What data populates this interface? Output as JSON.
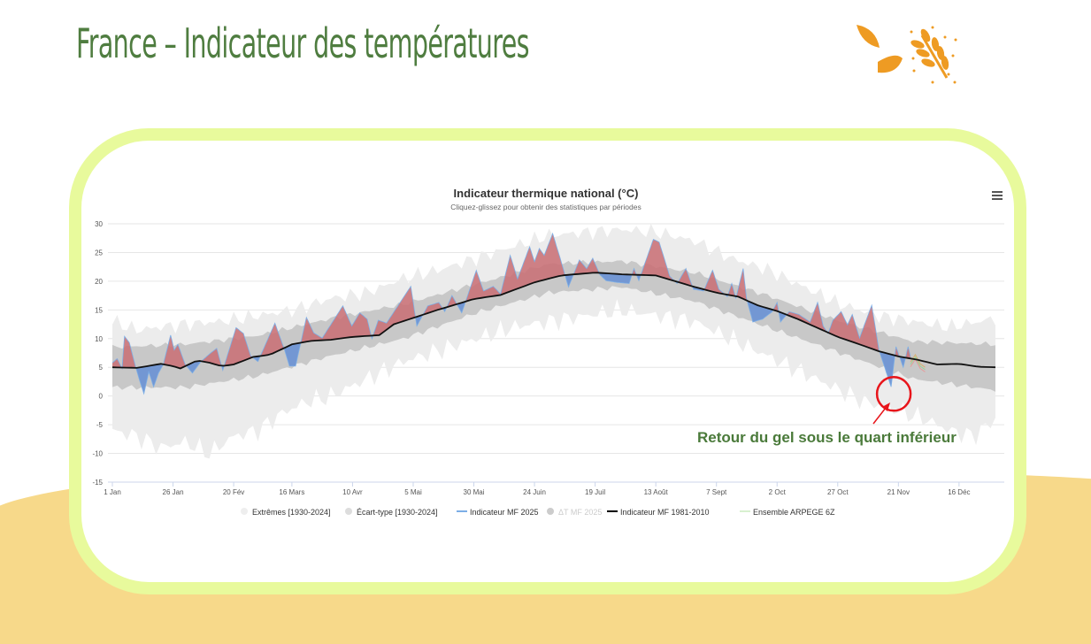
{
  "page_title": "France – Indicateur des températures",
  "logo_icon": "wheat-leaves-icon",
  "annotation": "Retour du gel sous le quart inférieur",
  "colors": {
    "title": "#4f7d40",
    "above": "#c96d73",
    "below": "#6f95d4",
    "card_border": "#e8fa9c",
    "accent_bg": "#f7d98a",
    "highlight": "#e8151b"
  },
  "chart_data": {
    "type": "area",
    "title": "Indicateur thermique national (°C)",
    "subtitle": "Cliquez-glissez pour obtenir des statistiques par périodes",
    "menu_icon": "hamburger-menu-icon",
    "ylim": [
      -15,
      30
    ],
    "yticks": [
      30,
      25,
      20,
      15,
      10,
      5,
      0,
      -5,
      -10,
      -15
    ],
    "xlim_days": [
      0,
      364
    ],
    "xticks": [
      {
        "day": 0,
        "label": "1 Jan"
      },
      {
        "day": 25,
        "label": "26 Jan"
      },
      {
        "day": 50,
        "label": "20 Fév"
      },
      {
        "day": 74,
        "label": "16 Mars"
      },
      {
        "day": 99,
        "label": "10 Avr"
      },
      {
        "day": 124,
        "label": "5 Mai"
      },
      {
        "day": 149,
        "label": "30 Mai"
      },
      {
        "day": 174,
        "label": "24 Juin"
      },
      {
        "day": 199,
        "label": "19 Juil"
      },
      {
        "day": 224,
        "label": "13 Août"
      },
      {
        "day": 249,
        "label": "7 Sept"
      },
      {
        "day": 274,
        "label": "2 Oct"
      },
      {
        "day": 299,
        "label": "27 Oct"
      },
      {
        "day": 324,
        "label": "21 Nov"
      },
      {
        "day": 349,
        "label": "16 Déc"
      }
    ],
    "grid": true,
    "legend_position": "bottom",
    "legend": [
      {
        "label": "Extrêmes [1930-2024]",
        "color": "#eeeeee",
        "type": "dot"
      },
      {
        "label": "Écart-type [1930-2024]",
        "color": "#dddddd",
        "type": "dot"
      },
      {
        "label": "Indicateur MF 2025",
        "color": "#7caee6",
        "type": "line"
      },
      {
        "label": "ΔT MF 2025",
        "color": "#cccccc",
        "type": "dot",
        "muted": true
      },
      {
        "label": "Indicateur MF 1981-2010",
        "color": "#000000",
        "type": "line"
      },
      {
        "label": "Ensemble ARPEGE 6Z",
        "color": "#d8f0d0",
        "type": "line"
      }
    ],
    "series": {
      "extremes_max": [
        [
          0,
          13
        ],
        [
          10,
          11.5
        ],
        [
          30,
          12.5
        ],
        [
          45,
          13
        ],
        [
          60,
          14
        ],
        [
          75,
          15
        ],
        [
          90,
          17
        ],
        [
          105,
          18
        ],
        [
          120,
          20.5
        ],
        [
          135,
          22
        ],
        [
          150,
          24
        ],
        [
          165,
          26
        ],
        [
          180,
          28
        ],
        [
          195,
          28.5
        ],
        [
          210,
          29
        ],
        [
          225,
          28.5
        ],
        [
          240,
          27
        ],
        [
          255,
          24
        ],
        [
          270,
          22
        ],
        [
          285,
          19
        ],
        [
          300,
          16
        ],
        [
          315,
          14
        ],
        [
          330,
          13
        ],
        [
          345,
          12
        ],
        [
          364,
          13.5
        ]
      ],
      "extremes_min": [
        [
          0,
          -6
        ],
        [
          10,
          -7
        ],
        [
          20,
          -9
        ],
        [
          30,
          -8
        ],
        [
          40,
          -10
        ],
        [
          50,
          -7
        ],
        [
          60,
          -6
        ],
        [
          70,
          -3
        ],
        [
          80,
          -1
        ],
        [
          90,
          0
        ],
        [
          100,
          2
        ],
        [
          110,
          4
        ],
        [
          120,
          6
        ],
        [
          135,
          8
        ],
        [
          150,
          10
        ],
        [
          165,
          12
        ],
        [
          180,
          13
        ],
        [
          195,
          14
        ],
        [
          210,
          15
        ],
        [
          225,
          14
        ],
        [
          240,
          13
        ],
        [
          255,
          10
        ],
        [
          270,
          7
        ],
        [
          285,
          4
        ],
        [
          300,
          1
        ],
        [
          310,
          -1
        ],
        [
          320,
          -2
        ],
        [
          335,
          -4
        ],
        [
          345,
          -6
        ],
        [
          355,
          -7
        ],
        [
          364,
          -4
        ]
      ],
      "stddev_low": [
        [
          0,
          1.5
        ],
        [
          30,
          1.5
        ],
        [
          60,
          3.5
        ],
        [
          90,
          7
        ],
        [
          120,
          10
        ],
        [
          150,
          14.5
        ],
        [
          180,
          18
        ],
        [
          210,
          19
        ],
        [
          240,
          16.5
        ],
        [
          270,
          12
        ],
        [
          300,
          7.5
        ],
        [
          330,
          3
        ],
        [
          364,
          1
        ]
      ],
      "stddev_high": [
        [
          0,
          8.5
        ],
        [
          30,
          9
        ],
        [
          60,
          10.5
        ],
        [
          90,
          13.5
        ],
        [
          120,
          16
        ],
        [
          150,
          19.5
        ],
        [
          180,
          23
        ],
        [
          210,
          23.5
        ],
        [
          240,
          21.5
        ],
        [
          270,
          17.5
        ],
        [
          300,
          13
        ],
        [
          330,
          9.5
        ],
        [
          364,
          9
        ]
      ],
      "normal_1981_2010": [
        [
          0,
          5
        ],
        [
          10,
          4.9
        ],
        [
          20,
          5.6
        ],
        [
          25,
          5.2
        ],
        [
          28,
          4.8
        ],
        [
          35,
          6.2
        ],
        [
          40,
          5.8
        ],
        [
          45,
          5.2
        ],
        [
          50,
          5.5
        ],
        [
          58,
          6.8
        ],
        [
          65,
          7.2
        ],
        [
          74,
          9
        ],
        [
          82,
          9.6
        ],
        [
          90,
          9.8
        ],
        [
          99,
          10.3
        ],
        [
          110,
          10.6
        ],
        [
          116,
          12.5
        ],
        [
          124,
          13.6
        ],
        [
          134,
          15
        ],
        [
          142,
          16
        ],
        [
          149,
          16.9
        ],
        [
          160,
          17.6
        ],
        [
          174,
          19.8
        ],
        [
          185,
          21
        ],
        [
          199,
          21.5
        ],
        [
          210,
          21.2
        ],
        [
          224,
          21
        ],
        [
          232,
          20
        ],
        [
          240,
          19
        ],
        [
          249,
          18
        ],
        [
          258,
          17.3
        ],
        [
          266,
          15.8
        ],
        [
          274,
          14.8
        ],
        [
          282,
          13.5
        ],
        [
          290,
          12
        ],
        [
          299,
          10.3
        ],
        [
          308,
          9
        ],
        [
          316,
          7.8
        ],
        [
          324,
          6.9
        ],
        [
          332,
          6.3
        ],
        [
          340,
          5.5
        ],
        [
          349,
          5.6
        ],
        [
          357,
          5.1
        ],
        [
          364,
          5
        ]
      ],
      "indicator_2025": [
        [
          0,
          5.8
        ],
        [
          2,
          6.5
        ],
        [
          4,
          4.8
        ],
        [
          5,
          10.4
        ],
        [
          7,
          9.3
        ],
        [
          9,
          6
        ],
        [
          11,
          3
        ],
        [
          13,
          0.4
        ],
        [
          15,
          4.2
        ],
        [
          17,
          1.6
        ],
        [
          19,
          4
        ],
        [
          21,
          5.5
        ],
        [
          24,
          10.6
        ],
        [
          25.5,
          8
        ],
        [
          27,
          9
        ],
        [
          30,
          5.5
        ],
        [
          33,
          4
        ],
        [
          36.5,
          6
        ],
        [
          40,
          7.3
        ],
        [
          43,
          8.3
        ],
        [
          45.5,
          4.5
        ],
        [
          51,
          11.9
        ],
        [
          54,
          10.9
        ],
        [
          57,
          7
        ],
        [
          60,
          6
        ],
        [
          67,
          12.7
        ],
        [
          71,
          8
        ],
        [
          73,
          5.2
        ],
        [
          75.5,
          5.2
        ],
        [
          80,
          13.7
        ],
        [
          83,
          11
        ],
        [
          86.5,
          10.1
        ],
        [
          95,
          15.7
        ],
        [
          98.7,
          12.2
        ],
        [
          102,
          14.5
        ],
        [
          105,
          13.4
        ],
        [
          107,
          10
        ],
        [
          109.6,
          13.2
        ],
        [
          113,
          12.7
        ],
        [
          123,
          19.1
        ],
        [
          125.5,
          12.2
        ],
        [
          130,
          15.7
        ],
        [
          134.6,
          16.3
        ],
        [
          137,
          14.7
        ],
        [
          140,
          17.5
        ],
        [
          144,
          14.5
        ],
        [
          150,
          21.9
        ],
        [
          153,
          18.3
        ],
        [
          157,
          19.1
        ],
        [
          160,
          17.8
        ],
        [
          164,
          24.5
        ],
        [
          167,
          20.4
        ],
        [
          172,
          26
        ],
        [
          174,
          23.4
        ],
        [
          176,
          25.7
        ],
        [
          178,
          24.5
        ],
        [
          181.5,
          28.3
        ],
        [
          185,
          23.4
        ],
        [
          188,
          19
        ],
        [
          192.5,
          23.7
        ],
        [
          195.5,
          22.2
        ],
        [
          198,
          24
        ],
        [
          201,
          21.1
        ],
        [
          203.5,
          20.1
        ],
        [
          208,
          19.8
        ],
        [
          213,
          19.6
        ],
        [
          215,
          22.2
        ],
        [
          217,
          20.1
        ],
        [
          223,
          27.3
        ],
        [
          225.4,
          26.8
        ],
        [
          229.7,
          20.9
        ],
        [
          232.8,
          19.6
        ],
        [
          236.4,
          22.2
        ],
        [
          239.5,
          18.6
        ],
        [
          243.7,
          18.3
        ],
        [
          247.4,
          21.9
        ],
        [
          250,
          18.6
        ],
        [
          253.5,
          17.3
        ],
        [
          255.3,
          19.6
        ],
        [
          257,
          17
        ],
        [
          260,
          22.2
        ],
        [
          261.4,
          17
        ],
        [
          264,
          12.9
        ],
        [
          268,
          13.4
        ],
        [
          272,
          14.7
        ],
        [
          274,
          16.3
        ],
        [
          275.4,
          12.9
        ],
        [
          279,
          14.7
        ],
        [
          283,
          14.2
        ],
        [
          287.6,
          12.9
        ],
        [
          290.7,
          16.3
        ],
        [
          293,
          12.2
        ],
        [
          295,
          10.9
        ],
        [
          297,
          13.2
        ],
        [
          300.4,
          14.7
        ],
        [
          303,
          12.4
        ],
        [
          305,
          14.2
        ],
        [
          308,
          10.1
        ],
        [
          313,
          15.8
        ],
        [
          316,
          8
        ],
        [
          321,
          1.6
        ],
        [
          323,
          8.6
        ],
        [
          326,
          5
        ],
        [
          328,
          8.6
        ],
        [
          329,
          6.8
        ]
      ],
      "arpege_ensemble": [
        [
          329,
          5.5
        ],
        [
          331,
          6.8
        ],
        [
          333,
          5.2
        ],
        [
          335,
          4.6
        ]
      ]
    },
    "highlight": {
      "day": 321,
      "value": 1.6
    }
  }
}
